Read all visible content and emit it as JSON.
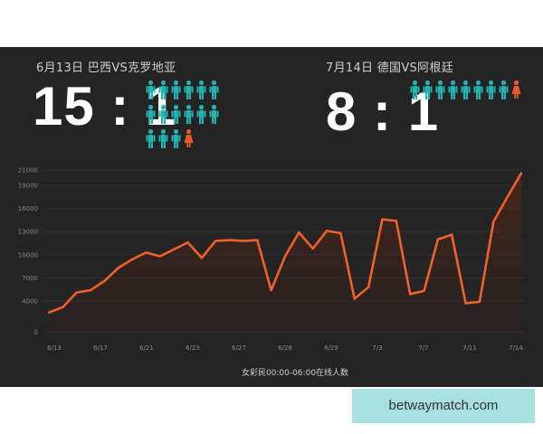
{
  "matches": [
    {
      "title": "6月13日 巴西VS克罗地亚",
      "score": "15 : 1",
      "ratio": [
        15,
        1
      ]
    },
    {
      "title": "7月14日 德国VS阿根廷",
      "score": "8 : 1",
      "ratio": [
        8,
        1
      ]
    }
  ],
  "colors": {
    "male": "#23b3b3",
    "female": "#e8582c",
    "line": "#f0612a",
    "background": "#242424"
  },
  "icons": {
    "male": "male-person-icon",
    "female": "female-person-icon"
  },
  "chart_data": {
    "type": "line",
    "xlabel": "女彩民00:00-06:00在线人数",
    "ylabel": "",
    "ylim": [
      0,
      21000
    ],
    "yticks": [
      0,
      4000,
      7000,
      10000,
      13000,
      16000,
      19000,
      21000
    ],
    "xticks": [
      "6/13",
      "6/17",
      "6/21",
      "6/23",
      "6/27",
      "6/28",
      "6/29",
      "7/3",
      "7/7",
      "7/11",
      "7/14"
    ],
    "grid": "horizontal",
    "series": [
      {
        "values": [
          2500,
          3200,
          5100,
          5400,
          6600,
          8300,
          9400,
          10300,
          9800,
          10700,
          11600,
          9600,
          11800,
          11900,
          11800,
          11900,
          5400,
          9800,
          12900,
          10800,
          13100,
          12800,
          4300,
          5800,
          14600,
          14400,
          4900,
          5300,
          12000,
          12600,
          3700,
          3900,
          14300,
          17500,
          20600
        ]
      }
    ]
  },
  "watermark": "betwaymatch.com"
}
